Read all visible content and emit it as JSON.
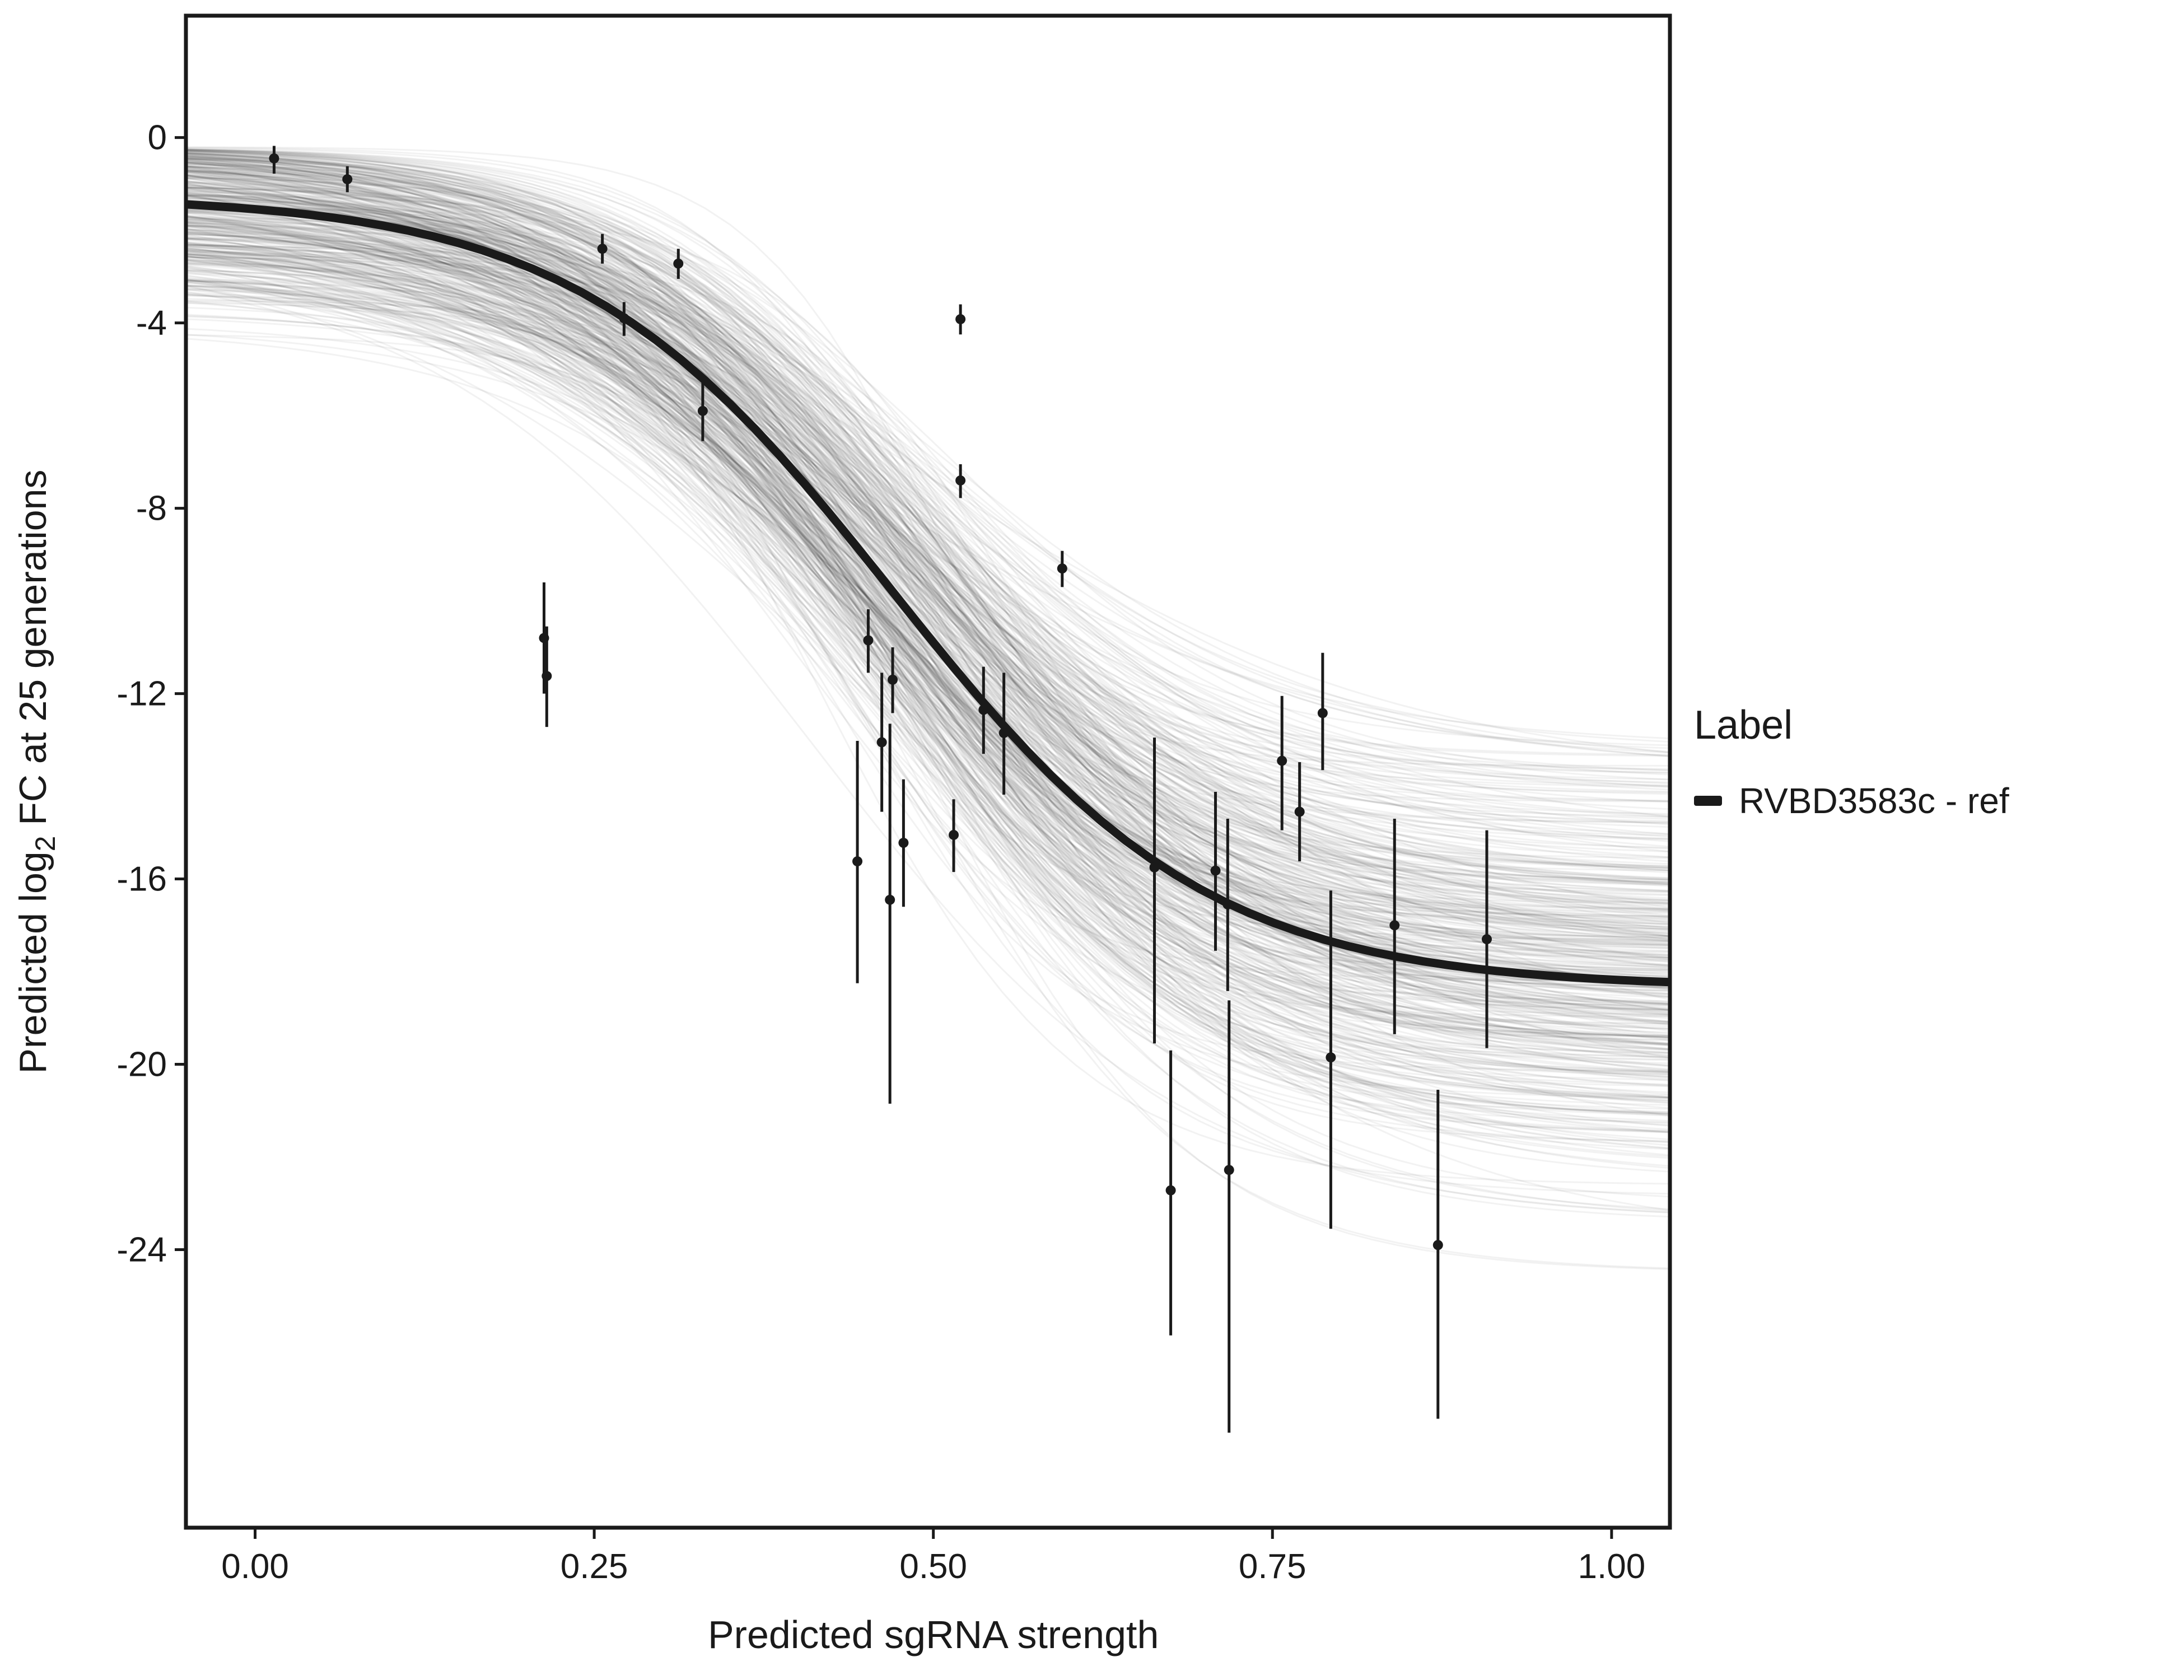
{
  "chart_data": {
    "type": "line",
    "title": "",
    "xlabel": "Predicted sgRNA strength",
    "ylabel_parts": {
      "pre": "Predicted  log",
      "sub": "2",
      "post": " FC at 25 generations"
    },
    "xlim": [
      -0.051,
      1.043
    ],
    "ylim": [
      -30.0,
      2.63
    ],
    "x_ticks": {
      "values": [
        0,
        0.25,
        0.5,
        0.75,
        1
      ],
      "labels": [
        "0.00",
        "0.25",
        "0.50",
        "0.75",
        "1.00"
      ]
    },
    "y_ticks": {
      "values": [
        0,
        -4,
        -8,
        -12,
        -16,
        -20,
        -24
      ],
      "labels": [
        "0",
        "-4",
        "-8",
        "-12",
        "-16",
        "-20",
        "-24"
      ]
    },
    "legend": {
      "title": "Label",
      "items": [
        {
          "label": "RVBD3583c - ref",
          "color": "#1a1a1a"
        }
      ]
    },
    "colors": {
      "panel_border": "#1a1a1a",
      "axis_text": "#1a1a1a",
      "point": "#1a1a1a"
    },
    "fit_curve": {
      "model": "logistic4",
      "top": -1.25,
      "bottom": -18.35,
      "midpoint": 0.47,
      "slope": 8.6,
      "color": "#1a1a1a",
      "width": 15
    },
    "posterior_ensemble": {
      "count": 450,
      "seed": 42,
      "sd_top": 1.25,
      "sd_bottom": 2.3,
      "sd_midpoint": 0.034,
      "sd_log_slope": 0.17,
      "top_clamp": [
        -4.8,
        -0.2
      ],
      "bottom_clamp": [
        -24.5,
        -12.2
      ],
      "color": "rgba(0,0,0,0.05)",
      "width": 3
    },
    "points": [
      [
        0.014,
        -0.45,
        -0.78,
        -0.18
      ],
      [
        0.068,
        -0.9,
        -1.18,
        -0.62
      ],
      [
        0.256,
        -2.4,
        -2.72,
        -2.08
      ],
      [
        0.312,
        -2.72,
        -3.05,
        -2.4
      ],
      [
        0.272,
        -3.9,
        -4.28,
        -3.55
      ],
      [
        0.33,
        -5.9,
        -6.55,
        -5.28
      ],
      [
        0.52,
        -3.92,
        -4.25,
        -3.6
      ],
      [
        0.52,
        -7.4,
        -7.78,
        -7.05
      ],
      [
        0.595,
        -9.3,
        -9.7,
        -8.92
      ],
      [
        0.213,
        -10.8,
        -12.0,
        -9.6
      ],
      [
        0.215,
        -11.62,
        -12.72,
        -10.55
      ],
      [
        0.452,
        -10.85,
        -11.55,
        -10.18
      ],
      [
        0.47,
        -11.7,
        -12.42,
        -11.0
      ],
      [
        0.462,
        -13.05,
        -14.55,
        -11.55
      ],
      [
        0.478,
        -15.22,
        -16.6,
        -13.85
      ],
      [
        0.515,
        -15.05,
        -15.85,
        -14.28
      ],
      [
        0.537,
        -12.35,
        -13.3,
        -11.42
      ],
      [
        0.552,
        -12.85,
        -14.18,
        -11.55
      ],
      [
        0.444,
        -15.62,
        -18.25,
        -13.02
      ],
      [
        0.468,
        -16.45,
        -20.85,
        -12.65
      ],
      [
        0.663,
        -15.75,
        -19.55,
        -12.95
      ],
      [
        0.708,
        -15.82,
        -17.55,
        -14.12
      ],
      [
        0.717,
        -16.55,
        -18.42,
        -14.7
      ],
      [
        0.757,
        -13.45,
        -14.95,
        -12.05
      ],
      [
        0.77,
        -14.55,
        -15.62,
        -13.48
      ],
      [
        0.787,
        -12.42,
        -13.65,
        -11.12
      ],
      [
        0.793,
        -19.85,
        -23.55,
        -16.25
      ],
      [
        0.84,
        -17.0,
        -19.35,
        -14.7
      ],
      [
        0.908,
        -17.3,
        -19.65,
        -14.95
      ],
      [
        0.675,
        -22.72,
        -25.85,
        -19.7
      ],
      [
        0.718,
        -22.28,
        -27.95,
        -18.62
      ],
      [
        0.872,
        -23.9,
        -27.65,
        -20.55
      ]
    ]
  }
}
